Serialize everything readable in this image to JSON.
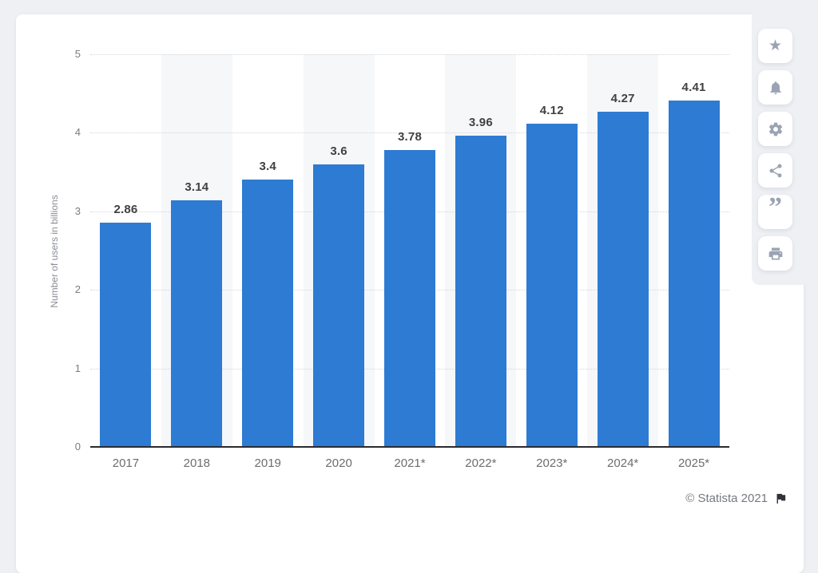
{
  "chart_data": {
    "type": "bar",
    "title": "",
    "categories": [
      "2017",
      "2018",
      "2019",
      "2020",
      "2021*",
      "2022*",
      "2023*",
      "2024*",
      "2025*"
    ],
    "values": [
      2.86,
      3.14,
      3.4,
      3.6,
      3.78,
      3.96,
      4.12,
      4.27,
      4.41
    ],
    "value_labels": [
      "2.86",
      "3.14",
      "3.4",
      "3.6",
      "3.78",
      "3.96",
      "4.12",
      "4.27",
      "4.41"
    ],
    "xlabel": "",
    "ylabel": "Number of users in billions",
    "ylim": [
      0,
      5
    ],
    "yticks": [
      0,
      1,
      2,
      3,
      4,
      5
    ],
    "grid": "horizontal-dotted",
    "legend": "none",
    "bar_color": "#2d7bd3",
    "striped_category_indexes": [
      1,
      3,
      5,
      7
    ],
    "stripe_color": "#f6f7f9"
  },
  "toolbar": {
    "icons": [
      {
        "name": "star",
        "label": "favorite"
      },
      {
        "name": "bell",
        "label": "notifications"
      },
      {
        "name": "gear",
        "label": "settings"
      },
      {
        "name": "share",
        "label": "share"
      },
      {
        "name": "quote",
        "label": "cite"
      },
      {
        "name": "print",
        "label": "print"
      }
    ]
  },
  "footer": {
    "credit": "© Statista 2021",
    "flag_icon": "flag"
  },
  "colors": {
    "page_background": "#eef0f4",
    "card_background": "#ffffff",
    "axis_line": "#2b2b2f",
    "icon_gray": "#9aa3b2",
    "value_label_text": "#414141",
    "tick_text": "#6d6d6d"
  }
}
